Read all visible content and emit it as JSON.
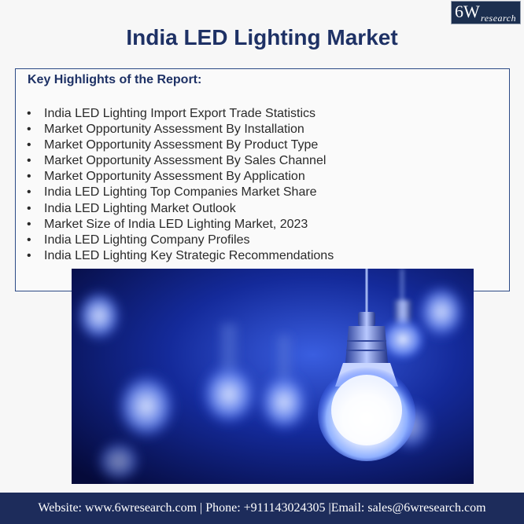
{
  "logo": {
    "main": "6W",
    "sub": "research"
  },
  "title": "India LED Lighting Market",
  "highlights": {
    "heading": "Key Highlights of the Report:",
    "bullet": "•",
    "items": [
      "India LED Lighting Import Export Trade Statistics",
      "Market Opportunity Assessment By Installation",
      "Market Opportunity Assessment By Product Type",
      "Market Opportunity Assessment By Sales Channel",
      "Market Opportunity Assessment By Application",
      "India LED Lighting Top Companies Market Share",
      "India LED Lighting Market Outlook",
      "Market Size of India LED Lighting Market, 2023",
      "India LED Lighting Company Profiles",
      "India LED Lighting Key Strategic Recommendations"
    ]
  },
  "footer": {
    "text": "Website: www.6wresearch.com | Phone: +911143024305 |Email: sales@6wresearch.com"
  },
  "colors": {
    "title": "#1e3165",
    "footer_bg": "#1d2c5b",
    "box_border": "#2c4a86",
    "photo_blue": "#1a3cc8"
  }
}
